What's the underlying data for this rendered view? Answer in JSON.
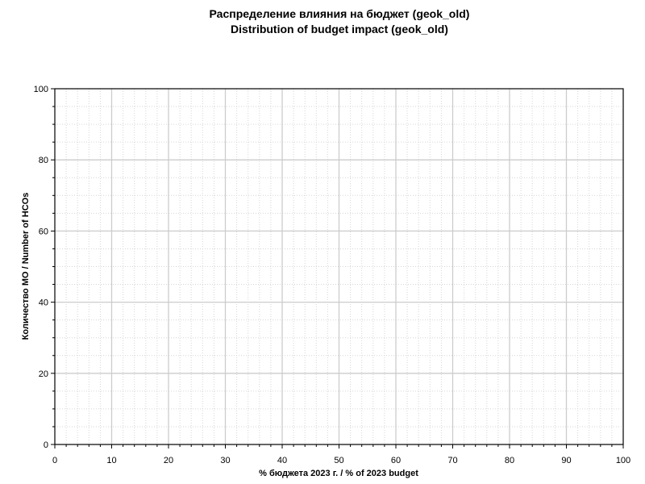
{
  "chart_data": {
    "type": "bar",
    "title": "Распределение влияния на бюджет (geok_old)",
    "subtitle": "Distribution of budget impact (geok_old)",
    "xlabel": "% бюджета 2023 г. / % of 2023 budget",
    "ylabel": "Количество МО / Number of HCOs",
    "xlim": [
      0,
      100
    ],
    "ylim": [
      0,
      100
    ],
    "x_major_ticks": [
      0,
      10,
      20,
      30,
      40,
      50,
      60,
      70,
      80,
      90,
      100
    ],
    "y_major_ticks": [
      0,
      20,
      40,
      60,
      80,
      100
    ],
    "x_tick_labels": [
      "0",
      "10",
      "20",
      "30",
      "40",
      "50",
      "60",
      "70",
      "80",
      "90",
      "100"
    ],
    "y_tick_labels": [
      "0",
      "20",
      "40",
      "60",
      "80",
      "100"
    ],
    "x_minor_step": 2,
    "y_minor_step": 5,
    "grid": true,
    "minor_grid": true,
    "series": [],
    "colors": {
      "major_grid": "#cccccc",
      "minor_grid": "#d6d6d6",
      "axis": "#000000"
    }
  }
}
